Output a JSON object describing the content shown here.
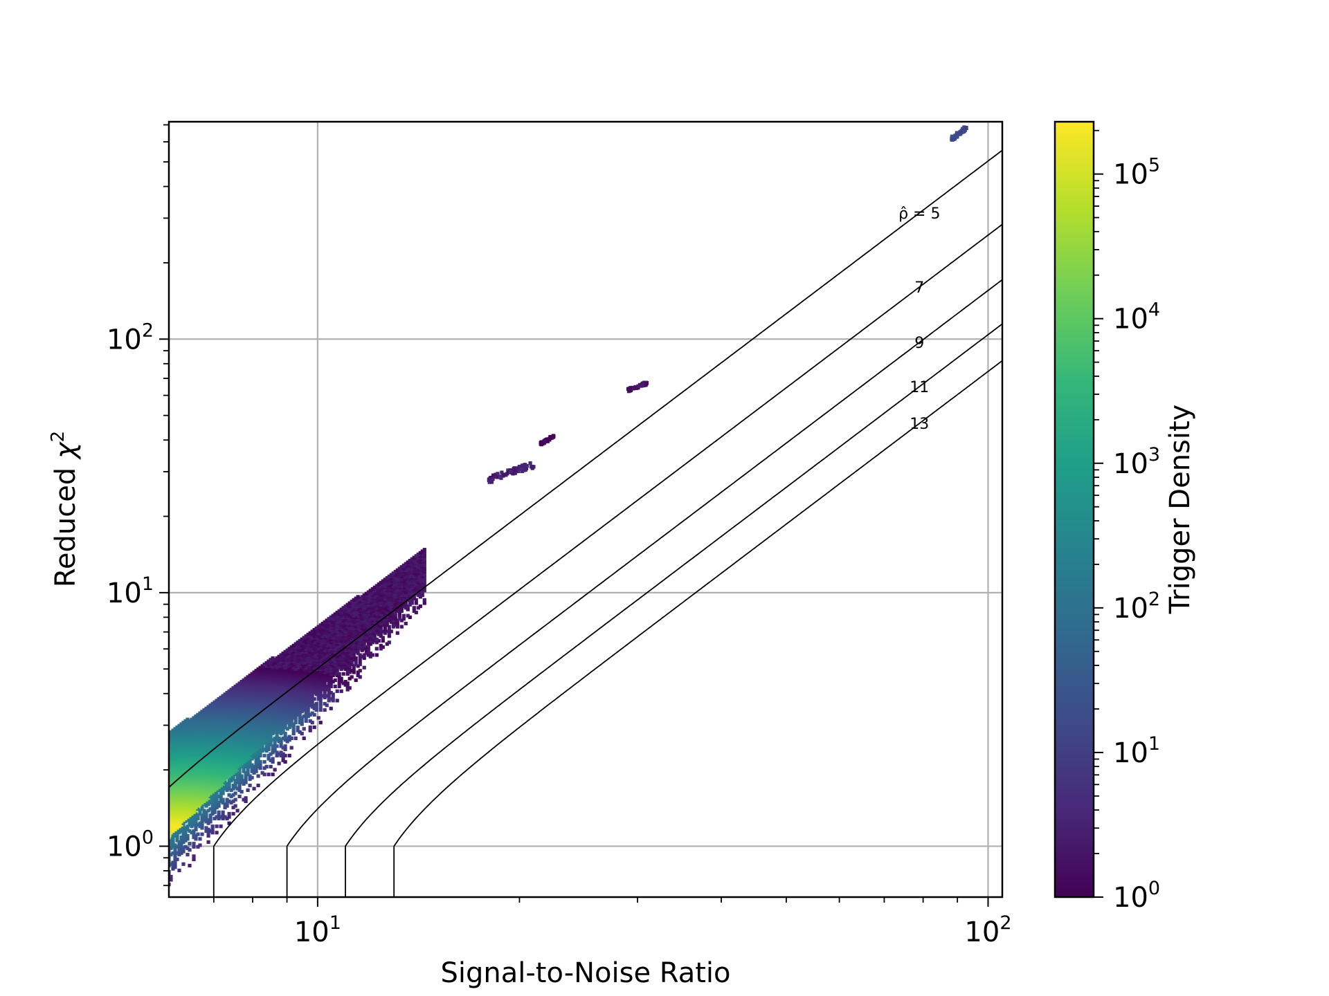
{
  "chart_data": {
    "type": "heatmap",
    "title": "",
    "xlabel": "Signal-to-Noise Ratio",
    "ylabel": "Reduced χ²",
    "xscale": "log",
    "yscale": "log",
    "xlim": [
      6,
      105
    ],
    "ylim": [
      0.63,
      720
    ],
    "grid": true,
    "x_ticks": [
      {
        "value": 10,
        "base": "10",
        "exp": "1"
      },
      {
        "value": 100,
        "base": "10",
        "exp": "2"
      }
    ],
    "y_ticks": [
      {
        "value": 1,
        "base": "10",
        "exp": "0"
      },
      {
        "value": 10,
        "base": "10",
        "exp": "1"
      },
      {
        "value": 100,
        "base": "10",
        "exp": "2"
      }
    ],
    "colorbar": {
      "label": "Trigger Density",
      "scale": "log",
      "colormap": "viridis",
      "range": [
        1,
        230000
      ],
      "ticks": [
        {
          "value": 1,
          "base": "10",
          "exp": "0"
        },
        {
          "value": 10,
          "base": "10",
          "exp": "1"
        },
        {
          "value": 100,
          "base": "10",
          "exp": "2"
        },
        {
          "value": 1000,
          "base": "10",
          "exp": "3"
        },
        {
          "value": 10000,
          "base": "10",
          "exp": "4"
        },
        {
          "value": 100000,
          "base": "10",
          "exp": "5"
        }
      ],
      "colors": [
        "#440154",
        "#482878",
        "#3e4989",
        "#31688e",
        "#26828e",
        "#1f9e89",
        "#35b779",
        "#6ece58",
        "#b5de2b",
        "#fde725"
      ]
    },
    "contours": [
      {
        "rho": 5,
        "label": "ρ̂ = 5"
      },
      {
        "rho": 7,
        "label": "7"
      },
      {
        "rho": 9,
        "label": "9"
      },
      {
        "rho": 11,
        "label": "11"
      },
      {
        "rho": 13,
        "label": "13"
      }
    ],
    "clusters": [
      {
        "snr": [
          6.0,
          14.5
        ],
        "chisq_low": [
          0.65,
          9.0
        ],
        "chisq_high": [
          2.8,
          15.0
        ],
        "peak_snr": 6.1,
        "peak_chisq": 1.2,
        "peak_density": 230000
      },
      {
        "snr": [
          18.0,
          21.0
        ],
        "chisq": [
          27,
          33
        ],
        "density": 3
      },
      {
        "snr": [
          21.5,
          22.5
        ],
        "chisq": [
          38,
          42
        ],
        "density": 1
      },
      {
        "snr": [
          29.0,
          31.0
        ],
        "chisq": [
          62,
          68
        ],
        "density": 2
      },
      {
        "snr": [
          88.0,
          93.0
        ],
        "chisq": [
          600,
          700
        ],
        "density": 15
      }
    ]
  }
}
